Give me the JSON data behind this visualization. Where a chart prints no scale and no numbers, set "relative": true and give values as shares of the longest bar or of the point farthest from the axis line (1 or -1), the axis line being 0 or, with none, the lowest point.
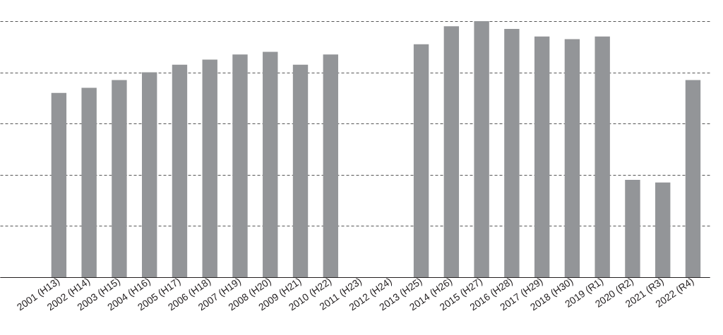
{
  "chart_data": {
    "type": "bar",
    "relative": true,
    "grid": "y",
    "color": "#939598",
    "categories": [
      "2001 (H13)",
      "2002 (H14)",
      "2003 (H15)",
      "2004 (H16)",
      "2005 (H17)",
      "2006 (H18)",
      "2007 (H19)",
      "2008 (H20)",
      "2009 (H21)",
      "2010 (H22)",
      "2011 (H23)",
      "2012 (H24)",
      "2013 (H25)",
      "2014 (H26)",
      "2015 (H27)",
      "2016 (H28)",
      "2017 (H29)",
      "2018 (H30)",
      "2019 (R1)",
      "2020 (R2)",
      "2021 (R3)",
      "2022 (R4)"
    ],
    "values": [
      0.72,
      0.74,
      0.77,
      0.8,
      0.83,
      0.85,
      0.87,
      0.88,
      0.83,
      0.87,
      null,
      null,
      0.91,
      0.98,
      1,
      0.97,
      0.94,
      0.93,
      0.94,
      0.38,
      0.37,
      0.77
    ]
  }
}
